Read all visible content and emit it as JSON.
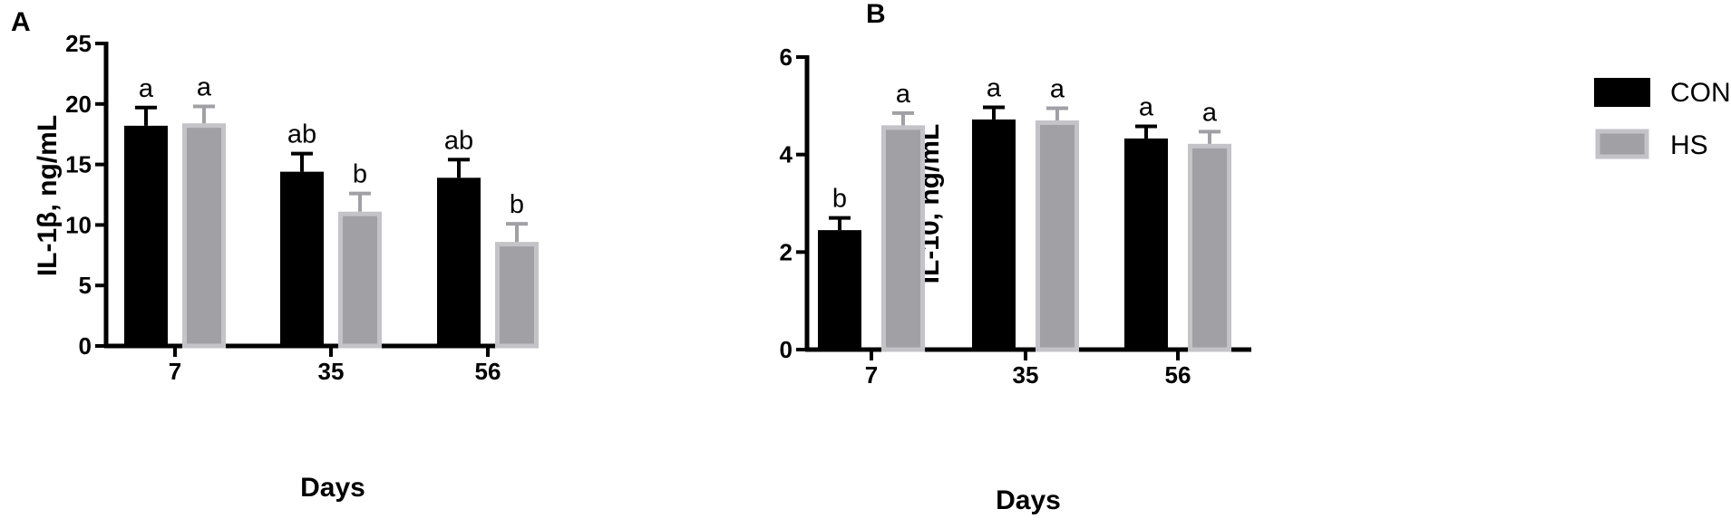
{
  "chart_data": [
    {
      "panel": "A",
      "type": "bar",
      "categories": [
        "7",
        "35",
        "56"
      ],
      "xlabel": "Days",
      "ylabel": "IL-1β, ng/mL",
      "ylim": [
        0,
        25
      ],
      "yticks": [
        "0",
        "5",
        "10",
        "15",
        "20",
        "25"
      ],
      "series": [
        {
          "name": "CON",
          "color": "#000000",
          "values": [
            18.2,
            14.4,
            13.9
          ],
          "errors": [
            1.5,
            1.5,
            1.5
          ],
          "labels": [
            "a",
            "ab",
            "ab"
          ]
        },
        {
          "name": "HS",
          "color": "#a0a0a5",
          "values": [
            18.4,
            11.1,
            8.6
          ],
          "errors": [
            1.4,
            1.5,
            1.5
          ],
          "labels": [
            "a",
            "b",
            "b"
          ]
        }
      ]
    },
    {
      "panel": "B",
      "type": "bar",
      "categories": [
        "7",
        "35",
        "56"
      ],
      "xlabel": "Days",
      "ylabel": "IL-10, ng/mL",
      "ylim": [
        0,
        6
      ],
      "yticks": [
        "0",
        "2",
        "4",
        "6"
      ],
      "series": [
        {
          "name": "CON",
          "color": "#000000",
          "values": [
            2.45,
            4.72,
            4.33
          ],
          "errors": [
            0.25,
            0.25,
            0.25
          ],
          "labels": [
            "b",
            "a",
            "a"
          ]
        },
        {
          "name": "HS",
          "color": "#a0a0a5",
          "values": [
            4.6,
            4.7,
            4.22
          ],
          "errors": [
            0.25,
            0.25,
            0.25
          ],
          "labels": [
            "a",
            "a",
            "a"
          ]
        }
      ]
    }
  ],
  "legend": {
    "placement": "top-right",
    "items": [
      {
        "name": "CON",
        "color": "#000000"
      },
      {
        "name": "HS",
        "color": "#a0a0a5"
      }
    ]
  }
}
